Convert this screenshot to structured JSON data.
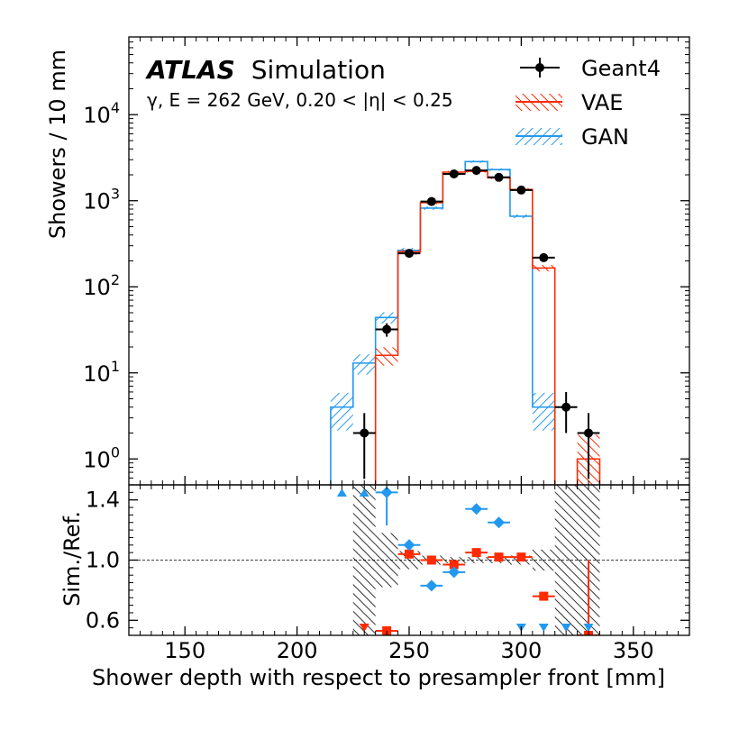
{
  "chart_data": [
    {
      "panel": "main",
      "type": "histogram-step",
      "yscale": "log",
      "xlim": [
        125,
        375
      ],
      "ylim": [
        0.5,
        80000
      ],
      "yticks": [
        1,
        10,
        100,
        1000,
        10000
      ],
      "ytick_labels": [
        "10",
        "10",
        "10",
        "10",
        "10"
      ],
      "ytick_exponents": [
        "0",
        "1",
        "2",
        "3",
        "4"
      ],
      "ylabel": "Showers / 10 mm",
      "experiment": "ATLAS",
      "experiment_suffix": "Simulation",
      "condition": "γ, E = 262 GeV, 0.20 < |η| < 0.25",
      "legend": [
        "Geant4",
        "VAE",
        "GAN"
      ],
      "bin_edges": [
        215,
        225,
        235,
        245,
        255,
        265,
        275,
        285,
        295,
        305,
        315,
        325,
        335
      ],
      "series": [
        {
          "name": "Geant4",
          "type": "points",
          "color": "#000000",
          "x": [
            230,
            240,
            250,
            260,
            270,
            280,
            290,
            300,
            310,
            320,
            330
          ],
          "y": [
            2,
            32,
            245,
            980,
            2050,
            2250,
            1870,
            1330,
            218,
            4,
            2
          ]
        },
        {
          "name": "VAE",
          "type": "step",
          "color": "#ff2a00",
          "values": [
            null,
            null,
            16,
            255,
            950,
            2150,
            2200,
            1850,
            1350,
            165,
            null,
            1
          ]
        },
        {
          "name": "GAN",
          "type": "step",
          "color": "#2299ee",
          "values": [
            4,
            13,
            44,
            265,
            820,
            2050,
            2850,
            2300,
            660,
            4,
            null,
            null
          ]
        }
      ]
    },
    {
      "panel": "ratio",
      "type": "ratio-points",
      "xlim": [
        125,
        375
      ],
      "ylim": [
        0.5,
        1.5
      ],
      "yticks": [
        0.6,
        1.0,
        1.4
      ],
      "ytick_labels": [
        "0.6",
        "1.0",
        "1.4"
      ],
      "xticks": [
        150,
        200,
        250,
        300,
        350
      ],
      "xtick_labels": [
        "150",
        "200",
        "250",
        "300",
        "350"
      ],
      "ylabel": "Sim./Ref.",
      "xlabel": "Shower depth with respect to presampler front [mm]",
      "reference_uncertainty": [
        {
          "x0": 225,
          "x1": 235,
          "lo": 0.5,
          "hi": 1.5
        },
        {
          "x0": 235,
          "x1": 245,
          "lo": 0.82,
          "hi": 1.18
        },
        {
          "x0": 245,
          "x1": 255,
          "lo": 0.94,
          "hi": 1.06
        },
        {
          "x0": 255,
          "x1": 265,
          "lo": 0.97,
          "hi": 1.03
        },
        {
          "x0": 265,
          "x1": 275,
          "lo": 0.98,
          "hi": 1.02
        },
        {
          "x0": 275,
          "x1": 285,
          "lo": 0.98,
          "hi": 1.02
        },
        {
          "x0": 285,
          "x1": 295,
          "lo": 0.98,
          "hi": 1.02
        },
        {
          "x0": 295,
          "x1": 305,
          "lo": 0.97,
          "hi": 1.03
        },
        {
          "x0": 305,
          "x1": 315,
          "lo": 0.93,
          "hi": 1.07
        },
        {
          "x0": 315,
          "x1": 335,
          "lo": 0.5,
          "hi": 1.5
        }
      ],
      "series": [
        {
          "name": "VAE",
          "color": "#ff2a00",
          "points": [
            {
              "x": 240,
              "y": 0.53
            },
            {
              "x": 250,
              "y": 1.04
            },
            {
              "x": 260,
              "y": 1.0
            },
            {
              "x": 270,
              "y": 0.97
            },
            {
              "x": 280,
              "y": 1.05
            },
            {
              "x": 290,
              "y": 1.02
            },
            {
              "x": 300,
              "y": 1.02
            },
            {
              "x": 310,
              "y": 0.76
            },
            {
              "x": 330,
              "y": 0.5,
              "yerr": [
                0,
                0.5
              ]
            }
          ],
          "offscale": [
            {
              "x": 230,
              "dir": "down"
            },
            {
              "x": 320,
              "dir": "down"
            }
          ]
        },
        {
          "name": "GAN",
          "color": "#2299ee",
          "points": [
            {
              "x": 240,
              "y": 1.45,
              "yerr": [
                0.22,
                0
              ]
            },
            {
              "x": 250,
              "y": 1.1
            },
            {
              "x": 260,
              "y": 0.83
            },
            {
              "x": 270,
              "y": 0.92
            },
            {
              "x": 280,
              "y": 1.34
            },
            {
              "x": 290,
              "y": 1.25
            }
          ],
          "offscale": [
            {
              "x": 220,
              "dir": "up"
            },
            {
              "x": 230,
              "dir": "up"
            },
            {
              "x": 300,
              "dir": "down"
            },
            {
              "x": 310,
              "dir": "down"
            },
            {
              "x": 320,
              "dir": "down"
            },
            {
              "x": 330,
              "dir": "down"
            }
          ]
        }
      ]
    }
  ]
}
